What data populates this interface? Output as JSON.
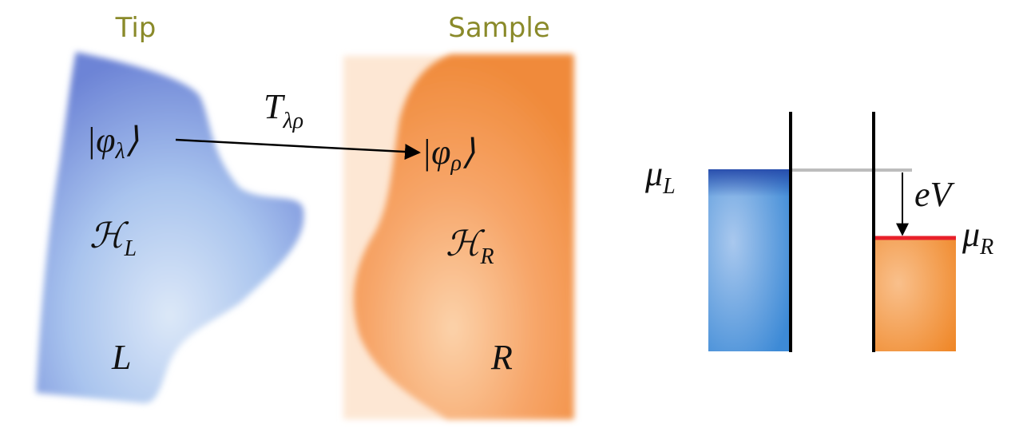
{
  "panels": {
    "tip": {
      "title": "Tip",
      "state": {
        "symbol": "|φ",
        "subscript": "λ",
        "close": "⟩"
      },
      "hamiltonian": {
        "symbol": "ℋ",
        "subscript": "L"
      },
      "region": "L"
    },
    "sample": {
      "title": "Sample",
      "state": {
        "symbol": "|φ",
        "subscript": "ρ",
        "close": "⟩"
      },
      "hamiltonian": {
        "symbol": "ℋ",
        "subscript": "R"
      },
      "region": "R"
    }
  },
  "tunneling": {
    "symbol": "T",
    "subscript": "λρ"
  },
  "energy_diagram": {
    "mu_left": {
      "symbol": "μ",
      "subscript": "L"
    },
    "mu_right": {
      "symbol": "μ",
      "subscript": "R"
    },
    "bias": "eV"
  }
}
